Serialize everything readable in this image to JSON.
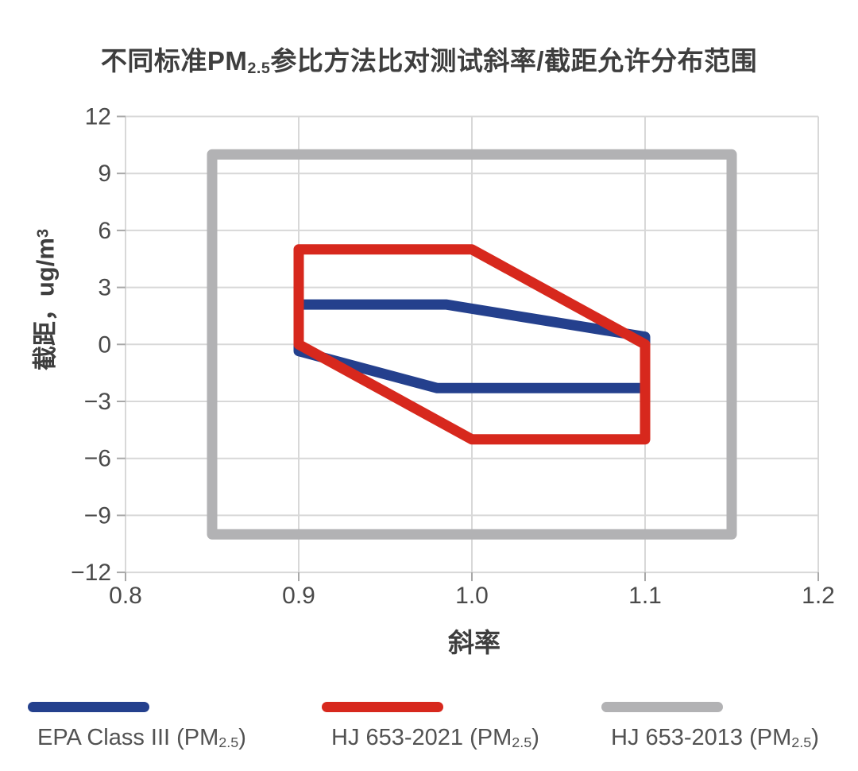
{
  "title": {
    "prefix": "不同标准PM",
    "sub": "2.5",
    "suffix": "参比方法比对测试斜率/截距允许分布范围"
  },
  "axes": {
    "y_title": {
      "prefix": "截距，ug/m",
      "sup": "3"
    }
  },
  "legend": {
    "position": "bottom",
    "items": [
      {
        "prefix": "EPA Class III (PM",
        "sub": "2.5",
        "suffix": ")",
        "color": "#24408d"
      },
      {
        "prefix": "HJ 653-2021 (PM",
        "sub": "2.5",
        "suffix": ")",
        "color": "#d7281d"
      },
      {
        "prefix": "HJ 653-2013 (PM",
        "sub": "2.5",
        "suffix": ")",
        "color": "#b2b2b4"
      }
    ]
  },
  "chart_data": {
    "type": "line",
    "subtype": "closed-polygon-acceptance-regions",
    "title": "不同标准PM2.5参比方法比对测试斜率/截距允许分布范围",
    "xlabel": "斜率",
    "ylabel": "截距，ug/m³",
    "xlim": [
      0.8,
      1.2
    ],
    "ylim": [
      -12,
      12
    ],
    "grid": true,
    "x_tick_values": [
      0.8,
      0.9,
      1.0,
      1.1,
      1.2
    ],
    "x_tick_labels": [
      "0.8",
      "0.9",
      "1.0",
      "1.1",
      "1.2"
    ],
    "y_tick_values": [
      12,
      9,
      6,
      3,
      0,
      -3,
      -6,
      -9,
      -12
    ],
    "y_tick_labels": [
      "12",
      "9",
      "6",
      "3",
      "0",
      "−3",
      "−6",
      "−9",
      "−12"
    ],
    "legend_position": "bottom",
    "draw_order": [
      2,
      0,
      1
    ],
    "series": [
      {
        "id": "epa-class-iii",
        "name": "EPA Class III (PM2.5)",
        "color": "#24408d",
        "shape": "hexagon",
        "vertices": [
          [
            0.9,
            2.1
          ],
          [
            0.985,
            2.1
          ],
          [
            1.1,
            0.4
          ],
          [
            1.1,
            -2.3
          ],
          [
            0.98,
            -2.3
          ],
          [
            0.9,
            -0.35
          ]
        ]
      },
      {
        "id": "hj-653-2021",
        "name": "HJ 653-2021 (PM2.5)",
        "color": "#d7281d",
        "shape": "hexagon",
        "vertices": [
          [
            0.9,
            5
          ],
          [
            1.0,
            5
          ],
          [
            1.1,
            0
          ],
          [
            1.1,
            -5
          ],
          [
            1.0,
            -5
          ],
          [
            0.9,
            0
          ]
        ]
      },
      {
        "id": "hj-653-2013",
        "name": "HJ 653-2013 (PM2.5)",
        "color": "#b2b2b4",
        "shape": "rectangle",
        "vertices": [
          [
            0.85,
            10
          ],
          [
            1.15,
            10
          ],
          [
            1.15,
            -10
          ],
          [
            0.85,
            -10
          ]
        ]
      }
    ]
  }
}
